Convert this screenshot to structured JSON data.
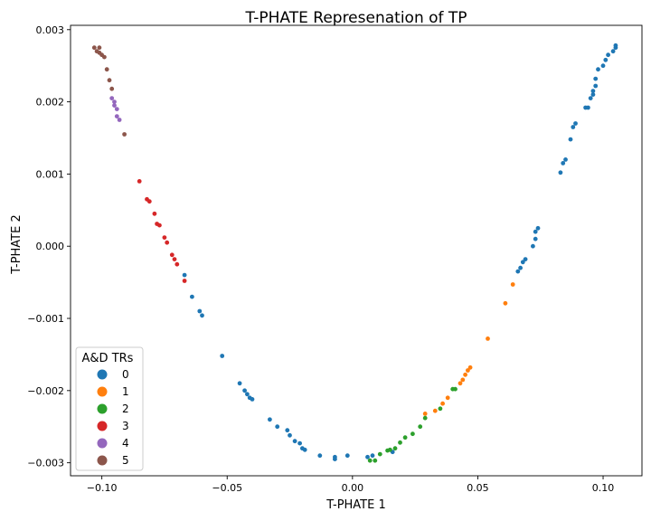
{
  "chart_data": {
    "type": "scatter",
    "title": "T-PHATE Represenation of TP",
    "xlabel": "T-PHATE 1",
    "ylabel": "T-PHATE 2",
    "xlim": [
      -0.1125,
      0.1155
    ],
    "ylim": [
      -0.00318,
      0.00306
    ],
    "xticks": [
      -0.1,
      -0.05,
      0.0,
      0.05,
      0.1
    ],
    "xtick_labels": [
      "−0.10",
      "−0.05",
      "0.00",
      "0.05",
      "0.10"
    ],
    "yticks": [
      -0.003,
      -0.002,
      -0.001,
      0.0,
      0.001,
      0.002,
      0.003
    ],
    "ytick_labels": [
      "−0.003",
      "−0.002",
      "−0.001",
      "0.000",
      "0.001",
      "0.002",
      "0.003"
    ],
    "grid": false,
    "legend": {
      "title": "A&D TRs",
      "position": "bottom-left"
    },
    "series": [
      {
        "name": "0",
        "color": "#1f77b4",
        "points": [
          [
            -0.067,
            -0.0004
          ],
          [
            -0.064,
            -0.0007
          ],
          [
            -0.061,
            -0.0009
          ],
          [
            -0.06,
            -0.00096
          ],
          [
            -0.052,
            -0.00152
          ],
          [
            -0.045,
            -0.0019
          ],
          [
            -0.043,
            -0.002
          ],
          [
            -0.042,
            -0.00205
          ],
          [
            -0.041,
            -0.0021
          ],
          [
            -0.04,
            -0.00212
          ],
          [
            -0.033,
            -0.0024
          ],
          [
            -0.03,
            -0.0025
          ],
          [
            -0.026,
            -0.00255
          ],
          [
            -0.025,
            -0.00262
          ],
          [
            -0.023,
            -0.0027
          ],
          [
            -0.021,
            -0.00273
          ],
          [
            -0.02,
            -0.0028
          ],
          [
            -0.019,
            -0.00282
          ],
          [
            -0.013,
            -0.0029
          ],
          [
            -0.007,
            -0.00292
          ],
          [
            -0.007,
            -0.00295
          ],
          [
            -0.002,
            -0.0029
          ],
          [
            0.006,
            -0.00292
          ],
          [
            0.008,
            -0.0029
          ],
          [
            0.016,
            -0.00285
          ],
          [
            0.066,
            -0.00035
          ],
          [
            0.067,
            -0.0003
          ],
          [
            0.068,
            -0.00022
          ],
          [
            0.069,
            -0.00018
          ],
          [
            0.072,
            0.0
          ],
          [
            0.073,
            0.0001
          ],
          [
            0.073,
            0.0002
          ],
          [
            0.074,
            0.00025
          ],
          [
            0.083,
            0.00102
          ],
          [
            0.084,
            0.00115
          ],
          [
            0.085,
            0.0012
          ],
          [
            0.087,
            0.00148
          ],
          [
            0.088,
            0.00165
          ],
          [
            0.089,
            0.0017
          ],
          [
            0.093,
            0.00192
          ],
          [
            0.094,
            0.00192
          ],
          [
            0.095,
            0.00205
          ],
          [
            0.096,
            0.0021
          ],
          [
            0.096,
            0.00215
          ],
          [
            0.097,
            0.00222
          ],
          [
            0.097,
            0.00232
          ],
          [
            0.098,
            0.00245
          ],
          [
            0.1,
            0.0025
          ],
          [
            0.101,
            0.00258
          ],
          [
            0.102,
            0.00265
          ],
          [
            0.104,
            0.0027
          ],
          [
            0.105,
            0.00275
          ],
          [
            0.105,
            0.00278
          ]
        ]
      },
      {
        "name": "1",
        "color": "#ff7f0e",
        "points": [
          [
            0.064,
            -0.00053
          ],
          [
            0.061,
            -0.00079
          ],
          [
            0.054,
            -0.00128
          ],
          [
            0.047,
            -0.00168
          ],
          [
            0.046,
            -0.00172
          ],
          [
            0.045,
            -0.00178
          ],
          [
            0.044,
            -0.00185
          ],
          [
            0.043,
            -0.0019
          ],
          [
            0.038,
            -0.0021
          ],
          [
            0.036,
            -0.00218
          ],
          [
            0.033,
            -0.00228
          ],
          [
            0.029,
            -0.00232
          ]
        ]
      },
      {
        "name": "2",
        "color": "#2ca02c",
        "points": [
          [
            0.041,
            -0.00198
          ],
          [
            0.04,
            -0.00198
          ],
          [
            0.035,
            -0.00225
          ],
          [
            0.029,
            -0.00238
          ],
          [
            0.027,
            -0.0025
          ],
          [
            0.024,
            -0.0026
          ],
          [
            0.021,
            -0.00265
          ],
          [
            0.019,
            -0.00272
          ],
          [
            0.017,
            -0.0028
          ],
          [
            0.015,
            -0.00282
          ],
          [
            0.014,
            -0.00283
          ],
          [
            0.011,
            -0.00288
          ],
          [
            0.009,
            -0.00297
          ],
          [
            0.007,
            -0.00297
          ]
        ]
      },
      {
        "name": "3",
        "color": "#d62728",
        "points": [
          [
            -0.085,
            0.0009
          ],
          [
            -0.082,
            0.00065
          ],
          [
            -0.081,
            0.00062
          ],
          [
            -0.079,
            0.00045
          ],
          [
            -0.078,
            0.00031
          ],
          [
            -0.077,
            0.00029
          ],
          [
            -0.075,
            0.00012
          ],
          [
            -0.074,
            5e-05
          ],
          [
            -0.072,
            -0.00012
          ],
          [
            -0.071,
            -0.00018
          ],
          [
            -0.07,
            -0.00025
          ],
          [
            -0.067,
            -0.00048
          ]
        ]
      },
      {
        "name": "4",
        "color": "#9467bd",
        "points": [
          [
            -0.096,
            0.00205
          ],
          [
            -0.095,
            0.002
          ],
          [
            -0.095,
            0.00195
          ],
          [
            -0.094,
            0.0019
          ],
          [
            -0.094,
            0.0018
          ],
          [
            -0.093,
            0.00175
          ]
        ]
      },
      {
        "name": "5",
        "color": "#8c564b",
        "points": [
          [
            -0.103,
            0.00275
          ],
          [
            -0.102,
            0.0027
          ],
          [
            -0.101,
            0.00275
          ],
          [
            -0.101,
            0.00268
          ],
          [
            -0.1,
            0.00265
          ],
          [
            -0.099,
            0.00262
          ],
          [
            -0.098,
            0.00245
          ],
          [
            -0.097,
            0.0023
          ],
          [
            -0.096,
            0.00218
          ],
          [
            -0.091,
            0.00155
          ]
        ]
      }
    ]
  }
}
